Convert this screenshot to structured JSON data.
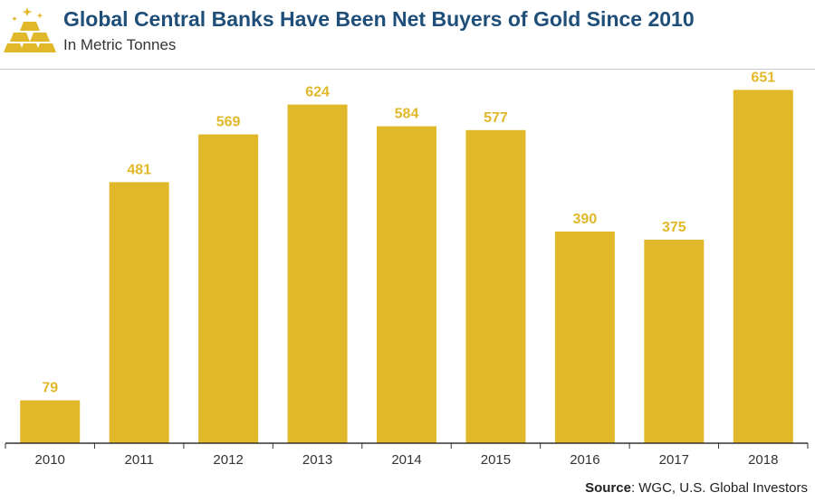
{
  "header": {
    "title": "Global Central Banks Have Been Net Buyers of Gold Since 2010",
    "subtitle": "In Metric Tonnes",
    "logo_icon": "gold-bars-icon"
  },
  "source": {
    "label": "Source",
    "text": ": WGC, U.S. Global Investors"
  },
  "colors": {
    "bar": "#e1b829",
    "value_label": "#e1b829",
    "title": "#1f4e79",
    "axis": "#333333"
  },
  "chart_data": {
    "type": "bar",
    "title": "Global Central Banks Have Been Net Buyers of Gold Since 2010",
    "subtitle": "In Metric Tonnes",
    "categories": [
      "2010",
      "2011",
      "2012",
      "2013",
      "2014",
      "2015",
      "2016",
      "2017",
      "2018"
    ],
    "values": [
      79,
      481,
      569,
      624,
      584,
      577,
      390,
      375,
      651
    ],
    "xlabel": "",
    "ylabel": "",
    "ylim": [
      0,
      700
    ],
    "grid": false,
    "legend": "none"
  }
}
